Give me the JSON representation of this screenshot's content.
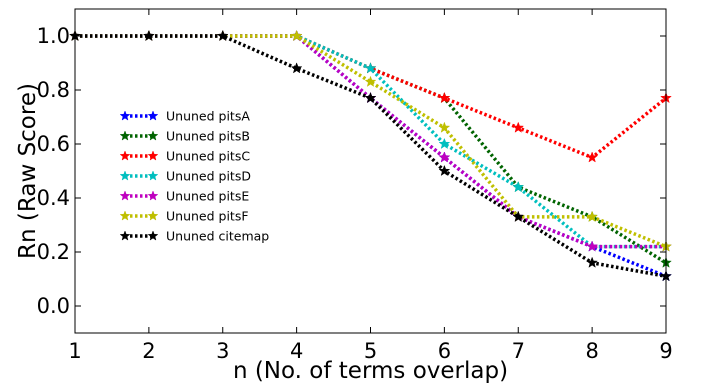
{
  "chart_data": {
    "type": "line",
    "title": "",
    "xlabel": "n (No. of terms overlap)",
    "ylabel": "Rn (Raw Score)",
    "xlim": [
      1,
      9
    ],
    "ylim": [
      -0.1,
      1.1
    ],
    "xticks": [
      1,
      2,
      3,
      4,
      5,
      6,
      7,
      8,
      9
    ],
    "yticks": [
      0.0,
      0.2,
      0.4,
      0.6,
      0.8,
      1.0
    ],
    "xtick_labels": [
      "1",
      "2",
      "3",
      "4",
      "5",
      "6",
      "7",
      "8",
      "9"
    ],
    "ytick_labels": [
      "0.0",
      "0.2",
      "0.4",
      "0.6",
      "0.8",
      "1.0"
    ],
    "grid": false,
    "legend_position": "center-left",
    "x": [
      1,
      2,
      3,
      4,
      5,
      6,
      7,
      8,
      9
    ],
    "series": [
      {
        "name": "Ununed pitsA",
        "color": "#0000ff",
        "values": [
          1.0,
          1.0,
          1.0,
          1.0,
          0.77,
          0.55,
          0.33,
          0.22,
          0.11
        ]
      },
      {
        "name": "Ununed pitsB",
        "color": "#006400",
        "values": [
          1.0,
          1.0,
          1.0,
          1.0,
          0.88,
          0.77,
          0.44,
          0.33,
          0.16
        ]
      },
      {
        "name": "Ununed pitsC",
        "color": "#ff0000",
        "values": [
          1.0,
          1.0,
          1.0,
          1.0,
          0.88,
          0.77,
          0.66,
          0.55,
          0.77
        ]
      },
      {
        "name": "Ununed pitsD",
        "color": "#00bfbf",
        "values": [
          1.0,
          1.0,
          1.0,
          1.0,
          0.88,
          0.6,
          0.44,
          0.22,
          0.22
        ]
      },
      {
        "name": "Ununed pitsE",
        "color": "#bf00bf",
        "values": [
          1.0,
          1.0,
          1.0,
          1.0,
          0.77,
          0.55,
          0.33,
          0.22,
          0.22
        ]
      },
      {
        "name": "Ununed pitsF",
        "color": "#bfbf00",
        "values": [
          1.0,
          1.0,
          1.0,
          1.0,
          0.83,
          0.66,
          0.33,
          0.33,
          0.22
        ]
      },
      {
        "name": "Ununed citemap",
        "color": "#000000",
        "values": [
          1.0,
          1.0,
          1.0,
          0.88,
          0.77,
          0.5,
          0.33,
          0.16,
          0.11
        ]
      }
    ]
  }
}
